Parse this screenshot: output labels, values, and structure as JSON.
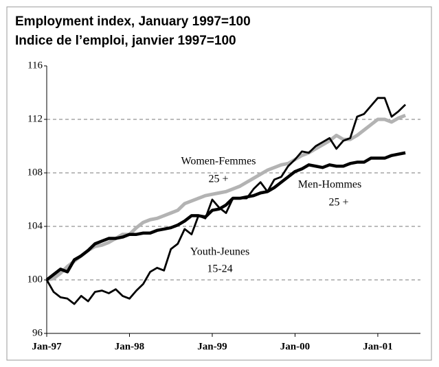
{
  "chart_data": {
    "type": "line",
    "title": "Employment index, January 1997=100",
    "subtitle": "Indice de l’emploi, janvier 1997=100",
    "categories": [
      "Jan-97",
      null,
      null,
      null,
      null,
      null,
      null,
      null,
      null,
      null,
      null,
      null,
      "Jan-98",
      null,
      null,
      null,
      null,
      null,
      null,
      null,
      null,
      null,
      null,
      null,
      "Jan-99",
      null,
      null,
      null,
      null,
      null,
      null,
      null,
      null,
      null,
      null,
      null,
      "Jan-00",
      null,
      null,
      null,
      null,
      null,
      null,
      null,
      null,
      null,
      null,
      null,
      "Jan-01",
      null,
      null,
      null,
      null
    ],
    "series": [
      {
        "name": "Women-Femmes",
        "sublabel": "25 +",
        "color": "#b3b3b3",
        "values": [
          100,
          100.1,
          100.5,
          101.0,
          101.4,
          101.8,
          102.2,
          102.5,
          102.6,
          102.8,
          103.1,
          103.4,
          103.4,
          103.9,
          104.3,
          104.5,
          104.6,
          104.8,
          105.0,
          105.2,
          105.7,
          105.9,
          106.1,
          106.3,
          106.4,
          106.5,
          106.6,
          106.8,
          107.0,
          107.3,
          107.6,
          107.9,
          108.2,
          108.4,
          108.6,
          108.7,
          109.0,
          109.3,
          109.5,
          109.8,
          110.1,
          110.4,
          110.8,
          110.5,
          110.5,
          110.8,
          111.2,
          111.6,
          112.0,
          112.0,
          111.8,
          112.1,
          112.3
        ]
      },
      {
        "name": "Men-Hommes",
        "sublabel": "25 +",
        "color": "#000000",
        "values": [
          100,
          100.4,
          100.8,
          100.6,
          101.5,
          101.8,
          102.2,
          102.7,
          102.9,
          103.1,
          103.1,
          103.2,
          103.4,
          103.4,
          103.5,
          103.5,
          103.7,
          103.8,
          103.9,
          104.1,
          104.4,
          104.8,
          104.8,
          104.7,
          105.2,
          105.3,
          105.6,
          106.1,
          106.1,
          106.2,
          106.3,
          106.5,
          106.6,
          106.9,
          107.3,
          107.7,
          108.1,
          108.3,
          108.6,
          108.5,
          108.4,
          108.6,
          108.5,
          108.5,
          108.7,
          108.8,
          108.8,
          109.1,
          109.1,
          109.1,
          109.3,
          109.4,
          109.5
        ]
      },
      {
        "name": "Youth-Jeunes",
        "sublabel": "15-24",
        "color": "#000000",
        "values": [
          100,
          99.1,
          98.7,
          98.6,
          98.2,
          98.8,
          98.4,
          99.1,
          99.2,
          99.0,
          99.3,
          98.8,
          98.6,
          99.2,
          99.7,
          100.6,
          100.9,
          100.7,
          102.3,
          102.7,
          103.8,
          103.4,
          104.8,
          104.6,
          106.0,
          105.4,
          105.0,
          106.1,
          106.1,
          106.1,
          106.8,
          107.3,
          106.6,
          107.5,
          107.7,
          108.5,
          109.0,
          109.6,
          109.5,
          110.0,
          110.3,
          110.6,
          109.8,
          110.4,
          110.6,
          112.2,
          112.4,
          113.0,
          113.6,
          113.6,
          112.2,
          112.6,
          113.1
        ]
      }
    ],
    "ylim": [
      96,
      116
    ],
    "yticks": [
      96,
      100,
      104,
      108,
      112,
      116
    ],
    "grid": true
  }
}
